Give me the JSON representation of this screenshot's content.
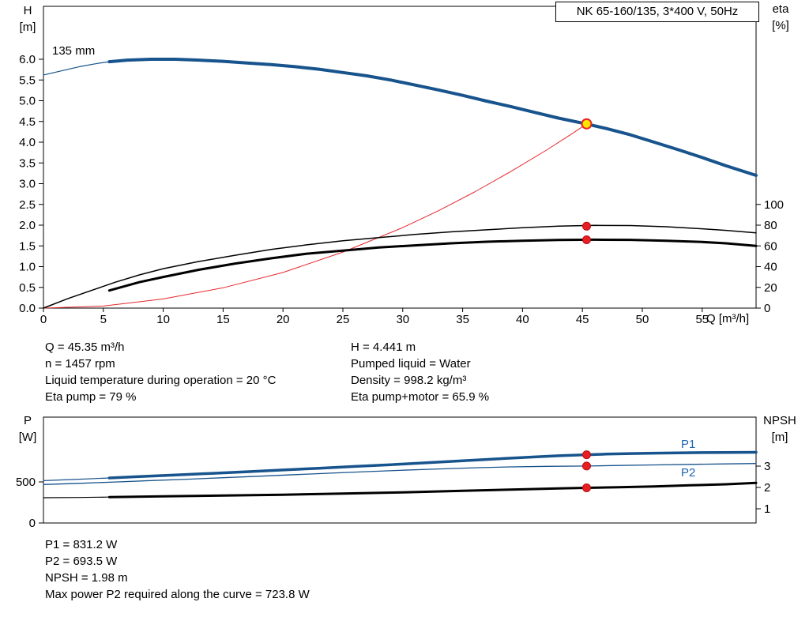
{
  "title_box": "NK 65-160/135, 3*400 V, 50Hz",
  "labels": {
    "h_axis": [
      "H",
      "[m]"
    ],
    "eta_axis": [
      "eta",
      "[%]"
    ],
    "q_axis": "Q [m³/h]",
    "p_axis": [
      "P",
      "[W]"
    ],
    "npsh_axis": [
      "NPSH",
      "[m]"
    ],
    "impeller": "135 mm",
    "p1": "P1",
    "p2": "P2"
  },
  "info_left": [
    "Q = 45.35 m³/h",
    "n = 1457 rpm",
    "Liquid temperature during operation = 20 °C",
    "Eta pump = 79 %"
  ],
  "info_right": [
    "H = 4.441 m",
    "Pumped liquid = Water",
    "Density = 998.2 kg/m³",
    "Eta pump+motor = 65.9 %"
  ],
  "results": [
    "P1 = 831.2 W",
    "P2 = 693.5 W",
    "NPSH = 1.98 m",
    "Max power P2 required along the curve = 723.8 W"
  ],
  "colors": {
    "curve_blue": "#17538c",
    "label_blue": "#1d64b0",
    "red": "#e8262c",
    "marker_red": "#e81e25",
    "marker_red_stroke": "#b50f0f",
    "duty_yellow": "#ffe400",
    "black": "#000000"
  },
  "chart_data": [
    {
      "id": "hq",
      "type": "line",
      "title": "NK 65-160/135, 3*400 V, 50Hz",
      "xlabel": "Q [m³/h]",
      "ylabel_left": "H [m]",
      "ylabel_right": "eta [%]",
      "grid": false,
      "legend": "none",
      "scales": {
        "x": [
          0,
          59.5
        ],
        "H": [
          0,
          6
        ],
        "eta": [
          0,
          100
        ]
      },
      "x_ticks": {
        "values": [
          0,
          5,
          10,
          15,
          20,
          25,
          30,
          35,
          40,
          45,
          50,
          55
        ],
        "labels": [
          "0",
          "5",
          "10",
          "15",
          "20",
          "25",
          "30",
          "35",
          "40",
          "45",
          "50",
          "55"
        ]
      },
      "y_ticks_left": {
        "values": [
          0,
          0.5,
          1,
          1.5,
          2,
          2.5,
          3,
          3.5,
          4,
          4.5,
          5,
          5.5,
          6
        ],
        "labels": [
          "0.0",
          "0.5",
          "1.0",
          "1.5",
          "2.0",
          "2.5",
          "3.0",
          "3.5",
          "4.0",
          "4.5",
          "5.0",
          "5.5",
          "6.0"
        ]
      },
      "y_ticks_right": {
        "values": [
          0,
          20,
          40,
          60,
          80,
          100
        ],
        "labels": [
          "0",
          "20",
          "40",
          "60",
          "80",
          "100"
        ]
      },
      "series": [
        {
          "name": "H curve lead-in",
          "scale": "H",
          "color": "#17538c",
          "width": 1.2,
          "points": [
            [
              0,
              5.62
            ],
            [
              1.5,
              5.72
            ],
            [
              3,
              5.82
            ],
            [
              4.5,
              5.9
            ],
            [
              5.5,
              5.94
            ]
          ]
        },
        {
          "name": "H-Q curve 135 mm",
          "scale": "H",
          "color": "#17538c",
          "width": 4,
          "points": [
            [
              5.5,
              5.94
            ],
            [
              7,
              5.98
            ],
            [
              9,
              6.0
            ],
            [
              11,
              6.0
            ],
            [
              13,
              5.98
            ],
            [
              15,
              5.95
            ],
            [
              17,
              5.91
            ],
            [
              19,
              5.87
            ],
            [
              21,
              5.82
            ],
            [
              23,
              5.76
            ],
            [
              25,
              5.68
            ],
            [
              27,
              5.6
            ],
            [
              29,
              5.5
            ],
            [
              31,
              5.38
            ],
            [
              33,
              5.26
            ],
            [
              35,
              5.13
            ],
            [
              37,
              4.99
            ],
            [
              39,
              4.86
            ],
            [
              41,
              4.72
            ],
            [
              43,
              4.58
            ],
            [
              45.35,
              4.44
            ],
            [
              47,
              4.33
            ],
            [
              49,
              4.18
            ],
            [
              51,
              4.0
            ],
            [
              53,
              3.82
            ],
            [
              55,
              3.63
            ],
            [
              57,
              3.43
            ],
            [
              59.5,
              3.2
            ]
          ]
        },
        {
          "name": "Duty system curve",
          "scale": "H",
          "color": "#e8262c",
          "width": 1,
          "points": [
            [
              0,
              0
            ],
            [
              5,
              0.05
            ],
            [
              10,
              0.22
            ],
            [
              15,
              0.49
            ],
            [
              20,
              0.86
            ],
            [
              25,
              1.35
            ],
            [
              30,
              1.94
            ],
            [
              33,
              2.35
            ],
            [
              36,
              2.8
            ],
            [
              39,
              3.29
            ],
            [
              42,
              3.81
            ],
            [
              44,
              4.18
            ],
            [
              45.35,
              4.44
            ]
          ]
        },
        {
          "name": "Eta pump",
          "scale": "eta",
          "color": "#000000",
          "width": 1.5,
          "points": [
            [
              0,
              0
            ],
            [
              2,
              9
            ],
            [
              4,
              17
            ],
            [
              6,
              25
            ],
            [
              8,
              32
            ],
            [
              10,
              38
            ],
            [
              13,
              45
            ],
            [
              16,
              51
            ],
            [
              19,
              56.5
            ],
            [
              22,
              61
            ],
            [
              25,
              65
            ],
            [
              28,
              68
            ],
            [
              31,
              71
            ],
            [
              34,
              73.5
            ],
            [
              37,
              75.5
            ],
            [
              40,
              77.5
            ],
            [
              43,
              79
            ],
            [
              46,
              79.8
            ],
            [
              49,
              79.6
            ],
            [
              52,
              78.5
            ],
            [
              55,
              76.5
            ],
            [
              57,
              75
            ],
            [
              59.5,
              72.5
            ]
          ]
        },
        {
          "name": "Eta pump plus motor",
          "scale": "eta",
          "color": "#000000",
          "width": 3,
          "points": [
            [
              5.5,
              17
            ],
            [
              8,
              25
            ],
            [
              10,
              30
            ],
            [
              13,
              37
            ],
            [
              16,
              43
            ],
            [
              19,
              48
            ],
            [
              22,
              52.5
            ],
            [
              25,
              55.5
            ],
            [
              28,
              58.5
            ],
            [
              31,
              60.5
            ],
            [
              34,
              62.5
            ],
            [
              37,
              64
            ],
            [
              40,
              65
            ],
            [
              43,
              65.7
            ],
            [
              46,
              66
            ],
            [
              49,
              65.8
            ],
            [
              52,
              65
            ],
            [
              55,
              63.8
            ],
            [
              57,
              62.5
            ],
            [
              59.5,
              60
            ]
          ]
        }
      ],
      "markers": [
        {
          "name": "eta-pump-point",
          "x": 45.35,
          "y": 79,
          "scale": "eta",
          "r": 5,
          "fill": "#e81e25",
          "stroke": "#b50f0f",
          "stroke_width": 1
        },
        {
          "name": "eta-motor-point",
          "x": 45.35,
          "y": 65.9,
          "scale": "eta",
          "r": 5,
          "fill": "#e81e25",
          "stroke": "#b50f0f",
          "stroke_width": 1
        },
        {
          "name": "duty-point",
          "x": 45.35,
          "y": 4.441,
          "scale": "H",
          "r": 6,
          "fill": "#ffe400",
          "stroke": "#e81e25",
          "stroke_width": 2
        }
      ]
    },
    {
      "id": "pq",
      "type": "line",
      "title": "",
      "xlabel": "",
      "ylabel_left": "P [W]",
      "ylabel_right": "NPSH [m]",
      "grid": false,
      "legend": "none",
      "scales": {
        "x": [
          0,
          59.5
        ],
        "P": [
          0,
          500
        ],
        "NPSH": [
          1,
          3
        ]
      },
      "x_ticks": {
        "values": [],
        "labels": []
      },
      "y_ticks_left": {
        "values": [
          0,
          500
        ],
        "labels": [
          "0",
          "500"
        ]
      },
      "y_ticks_right": {
        "values": [
          1,
          2,
          3
        ],
        "labels": [
          "1",
          "2",
          "3"
        ]
      },
      "series": [
        {
          "name": "P1 lead-in",
          "scale": "P",
          "color": "#17538c",
          "width": 1.2,
          "points": [
            [
              0,
              515
            ],
            [
              3,
              533
            ],
            [
              5.5,
              548
            ]
          ]
        },
        {
          "name": "P1 curve",
          "scale": "P",
          "color": "#17538c",
          "width": 3.5,
          "points": [
            [
              5.5,
              548
            ],
            [
              8,
              564
            ],
            [
              11,
              584
            ],
            [
              14,
              604
            ],
            [
              17,
              624
            ],
            [
              20,
              645
            ],
            [
              23,
              666
            ],
            [
              26,
              688
            ],
            [
              29,
              710
            ],
            [
              32,
              734
            ],
            [
              35,
              758
            ],
            [
              38,
              782
            ],
            [
              41,
              804
            ],
            [
              43,
              818
            ],
            [
              45.35,
              831.2
            ],
            [
              47,
              838
            ],
            [
              49,
              845
            ],
            [
              51,
              850
            ],
            [
              53,
              854
            ],
            [
              55,
              857
            ],
            [
              57,
              859
            ],
            [
              59.5,
              861
            ]
          ]
        },
        {
          "name": "P2 curve",
          "scale": "P",
          "color": "#17538c",
          "width": 1.3,
          "points": [
            [
              0,
              468
            ],
            [
              3,
              483
            ],
            [
              6,
              499
            ],
            [
              9,
              516
            ],
            [
              12,
              533
            ],
            [
              15,
              551
            ],
            [
              18,
              569
            ],
            [
              21,
              588
            ],
            [
              24,
              607
            ],
            [
              27,
              625
            ],
            [
              30,
              642
            ],
            [
              33,
              658
            ],
            [
              36,
              672
            ],
            [
              39,
              683
            ],
            [
              42,
              689
            ],
            [
              45.35,
              693.5
            ],
            [
              48,
              700
            ],
            [
              51,
              707
            ],
            [
              54,
              713
            ],
            [
              57,
              719
            ],
            [
              59.5,
              723.8
            ]
          ]
        },
        {
          "name": "NPSH lead-in",
          "scale": "NPSH",
          "color": "#000000",
          "width": 1.2,
          "points": [
            [
              0,
              1.52
            ],
            [
              3,
              1.53
            ],
            [
              5.5,
              1.55
            ]
          ]
        },
        {
          "name": "NPSH curve",
          "scale": "NPSH",
          "color": "#000000",
          "width": 3,
          "points": [
            [
              5.5,
              1.55
            ],
            [
              10,
              1.58
            ],
            [
              15,
              1.62
            ],
            [
              20,
              1.66
            ],
            [
              25,
              1.71
            ],
            [
              30,
              1.77
            ],
            [
              35,
              1.84
            ],
            [
              40,
              1.91
            ],
            [
              43,
              1.95
            ],
            [
              45.35,
              1.98
            ],
            [
              48,
              2.01
            ],
            [
              51,
              2.05
            ],
            [
              54,
              2.1
            ],
            [
              57,
              2.15
            ],
            [
              59.5,
              2.21
            ]
          ]
        }
      ],
      "markers": [
        {
          "name": "p1-point",
          "x": 45.35,
          "y": 831.2,
          "scale": "P",
          "r": 5,
          "fill": "#e81e25",
          "stroke": "#b50f0f",
          "stroke_width": 1
        },
        {
          "name": "p2-point",
          "x": 45.35,
          "y": 693.5,
          "scale": "P",
          "r": 5,
          "fill": "#e81e25",
          "stroke": "#b50f0f",
          "stroke_width": 1
        },
        {
          "name": "npsh-point",
          "x": 45.35,
          "y": 1.98,
          "scale": "NPSH",
          "r": 5,
          "fill": "#e81e25",
          "stroke": "#b50f0f",
          "stroke_width": 1
        }
      ]
    }
  ]
}
